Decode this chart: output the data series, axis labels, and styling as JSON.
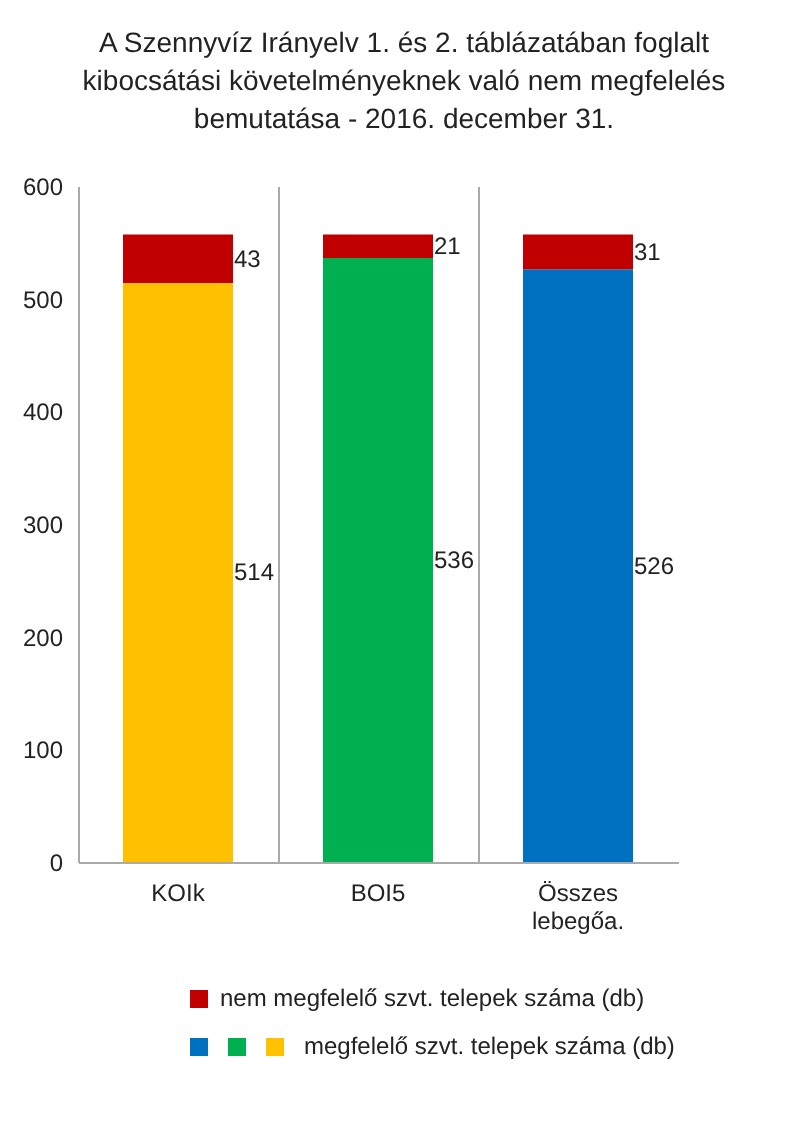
{
  "chart_data": {
    "type": "bar",
    "title": "A Szennyvíz Irányelv 1. és 2. táblázatában foglalt kibocsátási követelményeknek való nem megfelelés bemutatása - 2016. december 31.",
    "categories": [
      "KOIk",
      "BOI5",
      "Összes lebegőa."
    ],
    "series": [
      {
        "name": "megfelelő szvt. telepek száma (db)",
        "colors": [
          "#ffc000",
          "#00b050",
          "#0070c0"
        ],
        "values": [
          514,
          536,
          526
        ]
      },
      {
        "name": "nem megfelelő szvt. telepek száma (db)",
        "color": "#c00000",
        "values": [
          43,
          21,
          31
        ]
      }
    ],
    "stacked": true,
    "data_labels": true,
    "ylim": [
      0,
      600
    ],
    "yticks": [
      0,
      100,
      200,
      300,
      400,
      500,
      600
    ],
    "grid": false,
    "legend": "bottom"
  }
}
